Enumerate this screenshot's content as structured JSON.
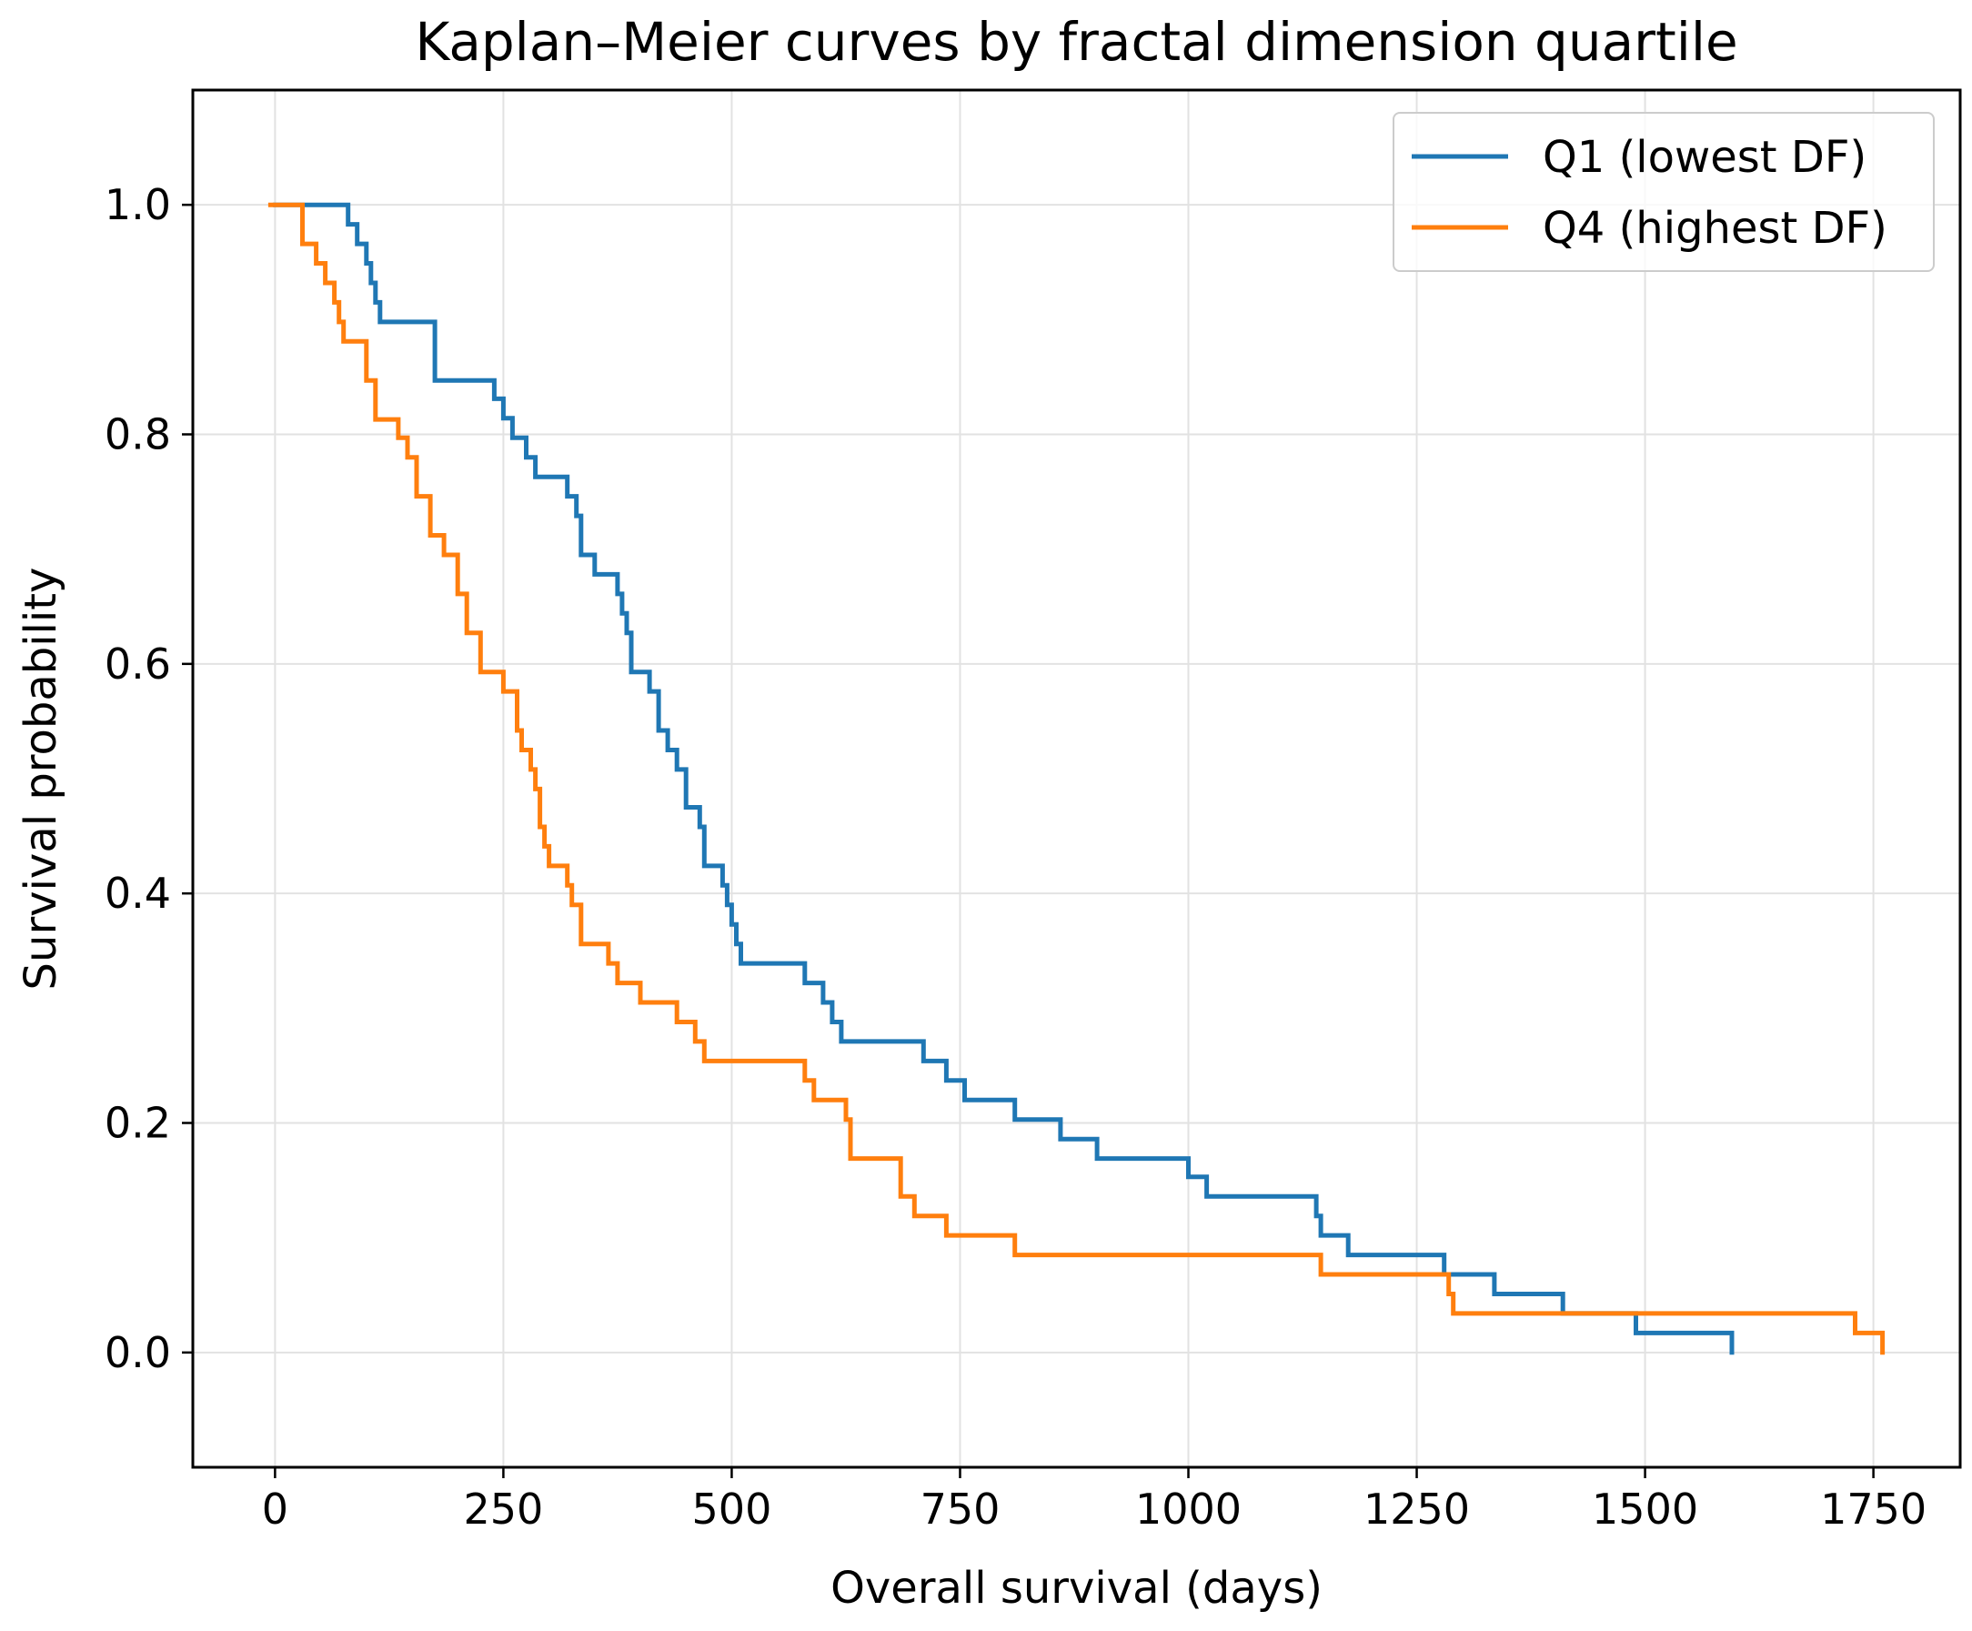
{
  "chart_data": {
    "type": "line",
    "title": "Kaplan–Meier curves by fractal dimension quartile",
    "xlabel": "Overall survival (days)",
    "ylabel": "Survival probability",
    "xlim": [
      -90,
      1845
    ],
    "ylim": [
      -0.1,
      1.1
    ],
    "xticks": [
      0,
      250,
      500,
      750,
      1000,
      1250,
      1500,
      1750
    ],
    "xtick_labels": [
      "0",
      "250",
      "500",
      "750",
      "1000",
      "1250",
      "1500",
      "1750"
    ],
    "yticks": [
      0.0,
      0.2,
      0.4,
      0.6,
      0.8,
      1.0
    ],
    "ytick_labels": [
      "0.0",
      "0.2",
      "0.4",
      "0.6",
      "0.8",
      "1.0"
    ],
    "grid": true,
    "legend_position": "top-right",
    "step": "post",
    "series": [
      {
        "name": "Q1 (lowest DF)",
        "color": "#1f77b4",
        "x": [
          0,
          80,
          90,
          100,
          105,
          110,
          115,
          175,
          210,
          240,
          250,
          260,
          275,
          285,
          320,
          330,
          335,
          350,
          375,
          380,
          385,
          390,
          410,
          420,
          430,
          440,
          450,
          465,
          470,
          490,
          495,
          500,
          505,
          510,
          580,
          600,
          610,
          620,
          710,
          735,
          755,
          790,
          810,
          860,
          900,
          1000,
          1020,
          1140,
          1145,
          1175,
          1280,
          1335,
          1410,
          1480,
          1490,
          1595
        ],
        "y": [
          1.0,
          0.983,
          0.966,
          0.949,
          0.932,
          0.915,
          0.898,
          0.847,
          0.847,
          0.831,
          0.814,
          0.797,
          0.78,
          0.763,
          0.746,
          0.729,
          0.695,
          0.678,
          0.661,
          0.644,
          0.627,
          0.593,
          0.576,
          0.542,
          0.525,
          0.508,
          0.475,
          0.458,
          0.424,
          0.407,
          0.39,
          0.373,
          0.356,
          0.339,
          0.322,
          0.305,
          0.288,
          0.271,
          0.254,
          0.237,
          0.22,
          0.22,
          0.203,
          0.186,
          0.169,
          0.153,
          0.136,
          0.119,
          0.102,
          0.085,
          0.068,
          0.051,
          0.034,
          0.034,
          0.017,
          0.0
        ]
      },
      {
        "name": "Q4 (highest DF)",
        "color": "#ff7f0e",
        "x": [
          -5,
          30,
          45,
          55,
          65,
          70,
          75,
          100,
          110,
          135,
          145,
          155,
          170,
          185,
          200,
          210,
          225,
          250,
          265,
          270,
          280,
          285,
          290,
          295,
          300,
          320,
          325,
          335,
          365,
          375,
          400,
          440,
          460,
          470,
          580,
          590,
          600,
          625,
          630,
          635,
          685,
          700,
          735,
          740,
          810,
          1145,
          1285,
          1290,
          1300,
          1730,
          1760
        ],
        "y": [
          1.0,
          0.966,
          0.949,
          0.932,
          0.915,
          0.898,
          0.881,
          0.847,
          0.813,
          0.797,
          0.78,
          0.746,
          0.712,
          0.695,
          0.661,
          0.627,
          0.593,
          0.576,
          0.542,
          0.525,
          0.508,
          0.491,
          0.458,
          0.441,
          0.424,
          0.407,
          0.39,
          0.356,
          0.339,
          0.322,
          0.305,
          0.288,
          0.271,
          0.254,
          0.237,
          0.22,
          0.22,
          0.203,
          0.169,
          0.169,
          0.136,
          0.119,
          0.102,
          0.102,
          0.085,
          0.068,
          0.051,
          0.034,
          0.034,
          0.017,
          0.0
        ]
      }
    ]
  }
}
